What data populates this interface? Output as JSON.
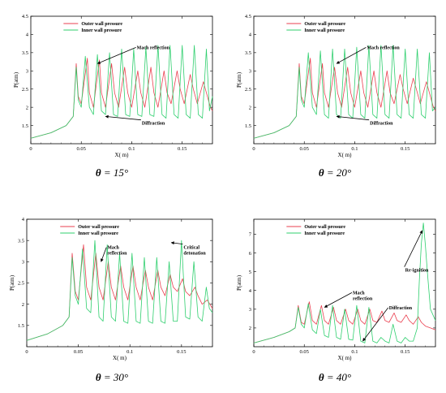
{
  "colors": {
    "outer": "#ea3f4f",
    "inner": "#2fcf6e",
    "axis": "#000000",
    "frame_bg": "#ffffff"
  },
  "chart_data": [
    {
      "type": "line",
      "caption_symbol": "θ",
      "caption_value": " = 15°",
      "xlabel": "X( m)",
      "ylabel": "P(atm)",
      "xlim": [
        0,
        0.18
      ],
      "ylim": [
        1,
        4.5
      ],
      "xticks": [
        0,
        0.05,
        0.1,
        0.15
      ],
      "xtick_labels": [
        "0",
        "0.05",
        "0.1",
        "0.15"
      ],
      "yticks": [
        1.5,
        2,
        2.5,
        3,
        3.5,
        4,
        4.5
      ],
      "ytick_labels": [
        "1.5",
        "2",
        "2.5",
        "3",
        "3.5",
        "4",
        "4.5"
      ],
      "legend_position": "top-center",
      "series": [
        {
          "name": "Outer wall pressure",
          "color_key": "outer",
          "x": [
            0,
            0.02,
            0.035,
            0.042,
            0.045,
            0.047,
            0.05,
            0.056,
            0.058,
            0.062,
            0.068,
            0.07,
            0.074,
            0.08,
            0.083,
            0.087,
            0.093,
            0.096,
            0.1,
            0.106,
            0.109,
            0.113,
            0.119,
            0.122,
            0.126,
            0.132,
            0.135,
            0.139,
            0.145,
            0.148,
            0.152,
            0.158,
            0.161,
            0.165,
            0.171,
            0.174,
            0.178,
            0.18
          ],
          "y": [
            1.15,
            1.3,
            1.5,
            1.75,
            3.2,
            2.3,
            2.1,
            3.35,
            2.4,
            2.0,
            3.3,
            2.4,
            2.0,
            3.2,
            2.4,
            2.0,
            3.1,
            2.4,
            2.0,
            3.0,
            2.4,
            2.0,
            3.1,
            2.4,
            2.0,
            3.0,
            2.4,
            2.1,
            3.0,
            2.5,
            2.1,
            2.9,
            2.5,
            2.1,
            2.7,
            2.4,
            2.0,
            1.9
          ]
        },
        {
          "name": "Inner wall pressure",
          "color_key": "inner",
          "x": [
            0,
            0.02,
            0.035,
            0.042,
            0.045,
            0.047,
            0.05,
            0.054,
            0.058,
            0.062,
            0.066,
            0.07,
            0.074,
            0.078,
            0.082,
            0.086,
            0.09,
            0.094,
            0.098,
            0.102,
            0.106,
            0.11,
            0.114,
            0.118,
            0.122,
            0.126,
            0.13,
            0.134,
            0.138,
            0.142,
            0.146,
            0.15,
            0.154,
            0.158,
            0.162,
            0.166,
            0.17,
            0.174,
            0.177,
            0.18
          ],
          "y": [
            1.15,
            1.3,
            1.5,
            1.75,
            3.1,
            2.2,
            2.0,
            3.4,
            2.0,
            1.8,
            3.45,
            1.9,
            1.8,
            3.5,
            1.8,
            1.75,
            3.6,
            1.8,
            1.75,
            3.6,
            1.8,
            1.75,
            3.65,
            1.8,
            1.75,
            3.7,
            1.8,
            1.7,
            3.7,
            1.8,
            1.7,
            3.7,
            1.8,
            1.7,
            3.7,
            1.8,
            1.7,
            3.6,
            1.9,
            2.3
          ]
        }
      ],
      "annotations": [
        {
          "text": "Mach reflection",
          "x": 0.105,
          "y": 3.6,
          "arrow_to": [
            0.066,
            3.2
          ]
        },
        {
          "text": "Diffraction",
          "x": 0.11,
          "y": 1.52,
          "arrow_to": [
            0.074,
            1.75
          ]
        }
      ]
    },
    {
      "type": "line",
      "caption_symbol": "θ",
      "caption_value": " = 20°",
      "xlabel": "X( m)",
      "ylabel": "P(atm)",
      "xlim": [
        0,
        0.18
      ],
      "ylim": [
        1,
        4.5
      ],
      "xticks": [
        0,
        0.05,
        0.1,
        0.15
      ],
      "xtick_labels": [
        "0",
        "0.05",
        "0.1",
        "0.15"
      ],
      "yticks": [
        1.5,
        2,
        2.5,
        3,
        3.5,
        4,
        4.5
      ],
      "ytick_labels": [
        "1.5",
        "2",
        "2.5",
        "3",
        "3.5",
        "4",
        "4.5"
      ],
      "legend_position": "top-center",
      "series": [
        {
          "name": "Outer wall pressure",
          "color_key": "outer",
          "x": [
            0,
            0.02,
            0.035,
            0.042,
            0.045,
            0.047,
            0.05,
            0.056,
            0.058,
            0.062,
            0.068,
            0.07,
            0.074,
            0.08,
            0.083,
            0.087,
            0.093,
            0.096,
            0.1,
            0.106,
            0.109,
            0.113,
            0.119,
            0.122,
            0.126,
            0.132,
            0.135,
            0.139,
            0.145,
            0.148,
            0.152,
            0.158,
            0.161,
            0.165,
            0.171,
            0.174,
            0.178,
            0.18
          ],
          "y": [
            1.15,
            1.3,
            1.5,
            1.75,
            3.2,
            2.3,
            2.1,
            3.35,
            2.4,
            2.0,
            3.2,
            2.4,
            2.0,
            3.1,
            2.4,
            2.0,
            3.1,
            2.4,
            2.0,
            3.0,
            2.4,
            2.0,
            3.0,
            2.4,
            2.0,
            3.0,
            2.4,
            2.1,
            2.9,
            2.5,
            2.1,
            2.8,
            2.5,
            2.1,
            2.7,
            2.4,
            2.0,
            1.9
          ]
        },
        {
          "name": "Inner wall pressure",
          "color_key": "inner",
          "x": [
            0,
            0.02,
            0.035,
            0.042,
            0.045,
            0.047,
            0.05,
            0.054,
            0.058,
            0.062,
            0.066,
            0.07,
            0.074,
            0.078,
            0.082,
            0.086,
            0.09,
            0.094,
            0.098,
            0.102,
            0.106,
            0.11,
            0.114,
            0.118,
            0.122,
            0.126,
            0.13,
            0.134,
            0.138,
            0.142,
            0.146,
            0.15,
            0.154,
            0.158,
            0.162,
            0.166,
            0.17,
            0.174,
            0.177,
            0.18
          ],
          "y": [
            1.15,
            1.3,
            1.5,
            1.75,
            3.1,
            2.2,
            2.0,
            3.5,
            2.0,
            1.8,
            3.55,
            1.8,
            1.7,
            3.6,
            1.8,
            1.7,
            3.6,
            1.8,
            1.7,
            3.65,
            1.8,
            1.7,
            3.7,
            1.8,
            1.7,
            3.7,
            1.8,
            1.7,
            3.7,
            1.8,
            1.7,
            3.6,
            1.8,
            1.7,
            3.6,
            1.8,
            1.7,
            3.5,
            1.9,
            2.0
          ]
        }
      ],
      "annotations": [
        {
          "text": "Mach reflection",
          "x": 0.112,
          "y": 3.6,
          "arrow_to": [
            0.082,
            3.2
          ]
        },
        {
          "text": "Diffraction",
          "x": 0.115,
          "y": 1.52,
          "arrow_to": [
            0.082,
            1.75
          ]
        }
      ]
    },
    {
      "type": "line",
      "caption_symbol": "θ",
      "caption_value": " = 30°",
      "xlabel": "X( m)",
      "ylabel": "P(atm)",
      "xlim": [
        0,
        0.18
      ],
      "ylim": [
        1,
        4
      ],
      "xticks": [
        0,
        0.05,
        0.1,
        0.15
      ],
      "xtick_labels": [
        "0",
        "0.05",
        "0.1",
        "0.15"
      ],
      "yticks": [
        1.5,
        2,
        2.5,
        3,
        3.5,
        4
      ],
      "ytick_labels": [
        "1.5",
        "2",
        "2.5",
        "3",
        "3.5",
        "4"
      ],
      "legend_position": "top-center",
      "series": [
        {
          "name": "Outer wall pressure",
          "color_key": "outer",
          "x": [
            0,
            0.02,
            0.035,
            0.041,
            0.044,
            0.047,
            0.05,
            0.055,
            0.058,
            0.062,
            0.067,
            0.07,
            0.074,
            0.079,
            0.082,
            0.086,
            0.091,
            0.094,
            0.098,
            0.103,
            0.106,
            0.11,
            0.115,
            0.118,
            0.122,
            0.127,
            0.13,
            0.134,
            0.139,
            0.142,
            0.146,
            0.151,
            0.154,
            0.158,
            0.163,
            0.166,
            0.17,
            0.175,
            0.18
          ],
          "y": [
            1.15,
            1.3,
            1.5,
            1.7,
            3.2,
            2.3,
            2.1,
            3.4,
            2.4,
            2.1,
            3.2,
            2.4,
            2.1,
            3.0,
            2.4,
            2.1,
            2.9,
            2.4,
            2.1,
            2.9,
            2.4,
            2.1,
            2.8,
            2.4,
            2.1,
            2.8,
            2.4,
            2.2,
            2.7,
            2.4,
            2.3,
            2.6,
            2.3,
            2.2,
            2.4,
            2.2,
            2.0,
            2.1,
            1.9
          ]
        },
        {
          "name": "Inner wall pressure",
          "color_key": "inner",
          "x": [
            0,
            0.02,
            0.035,
            0.041,
            0.044,
            0.047,
            0.05,
            0.054,
            0.058,
            0.062,
            0.066,
            0.07,
            0.074,
            0.078,
            0.082,
            0.086,
            0.09,
            0.094,
            0.098,
            0.102,
            0.106,
            0.11,
            0.114,
            0.118,
            0.122,
            0.126,
            0.13,
            0.134,
            0.138,
            0.142,
            0.146,
            0.15,
            0.154,
            0.158,
            0.162,
            0.166,
            0.17,
            0.174,
            0.177,
            0.18
          ],
          "y": [
            1.15,
            1.3,
            1.5,
            1.7,
            3.1,
            2.2,
            2.0,
            3.3,
            1.9,
            1.8,
            3.5,
            1.7,
            1.6,
            3.4,
            1.7,
            1.6,
            3.2,
            1.6,
            1.55,
            3.2,
            1.6,
            1.55,
            3.1,
            1.6,
            1.55,
            3.1,
            1.6,
            1.55,
            3.0,
            1.6,
            1.6,
            3.5,
            1.7,
            1.65,
            3.0,
            1.7,
            1.6,
            2.4,
            1.9,
            1.8
          ]
        }
      ],
      "annotations": [
        {
          "text": "Mach\nreflection",
          "x": 0.078,
          "y": 3.3,
          "arrow_to": [
            0.072,
            3.0
          ]
        },
        {
          "text": "Critical\ndetonation",
          "x": 0.152,
          "y": 3.3,
          "arrow_to": [
            0.14,
            3.45
          ]
        }
      ]
    },
    {
      "type": "line",
      "caption_symbol": "θ",
      "caption_value": " = 40°",
      "xlabel": "X( m)",
      "ylabel": "P(atm)",
      "xlim": [
        0,
        0.18
      ],
      "ylim": [
        1,
        7.8
      ],
      "xticks": [
        0,
        0.05,
        0.1,
        0.15
      ],
      "xtick_labels": [
        "0",
        "0.05",
        "0.1",
        "0.15"
      ],
      "yticks": [
        2,
        3,
        4,
        5,
        6,
        7
      ],
      "ytick_labels": [
        "2",
        "3",
        "4",
        "5",
        "6",
        "7"
      ],
      "legend_position": "top-center",
      "series": [
        {
          "name": "Outer wall pressure",
          "color_key": "outer",
          "x": [
            0,
            0.02,
            0.035,
            0.041,
            0.044,
            0.047,
            0.05,
            0.055,
            0.058,
            0.062,
            0.067,
            0.07,
            0.074,
            0.079,
            0.082,
            0.086,
            0.091,
            0.094,
            0.098,
            0.103,
            0.106,
            0.11,
            0.115,
            0.118,
            0.122,
            0.127,
            0.13,
            0.134,
            0.139,
            0.142,
            0.146,
            0.151,
            0.154,
            0.158,
            0.163,
            0.166,
            0.17,
            0.175,
            0.18
          ],
          "y": [
            1.2,
            1.5,
            1.8,
            2.0,
            3.2,
            2.3,
            2.2,
            3.4,
            2.4,
            2.2,
            3.2,
            2.4,
            2.2,
            3.1,
            2.4,
            2.2,
            3.0,
            2.4,
            2.2,
            3.0,
            2.4,
            2.2,
            3.0,
            2.4,
            2.3,
            2.9,
            2.4,
            2.3,
            2.8,
            2.4,
            2.3,
            2.7,
            2.4,
            2.2,
            2.6,
            2.3,
            2.1,
            2.0,
            1.9
          ]
        },
        {
          "name": "Inner wall pressure",
          "color_key": "inner",
          "x": [
            0,
            0.02,
            0.035,
            0.041,
            0.044,
            0.047,
            0.05,
            0.054,
            0.058,
            0.062,
            0.066,
            0.07,
            0.074,
            0.078,
            0.082,
            0.086,
            0.09,
            0.094,
            0.098,
            0.102,
            0.106,
            0.11,
            0.114,
            0.118,
            0.122,
            0.126,
            0.13,
            0.134,
            0.138,
            0.142,
            0.146,
            0.15,
            0.154,
            0.158,
            0.162,
            0.164,
            0.166,
            0.168,
            0.17,
            0.172,
            0.175,
            0.18
          ],
          "y": [
            1.2,
            1.5,
            1.8,
            2.0,
            3.1,
            2.2,
            2.0,
            3.3,
            1.9,
            1.7,
            3.0,
            1.6,
            1.5,
            3.2,
            1.5,
            1.4,
            3.0,
            1.4,
            1.35,
            3.2,
            1.3,
            1.2,
            3.1,
            1.3,
            1.2,
            1.5,
            1.3,
            1.2,
            2.2,
            1.3,
            1.2,
            1.5,
            1.3,
            1.3,
            2.0,
            4.5,
            6.5,
            7.6,
            6.4,
            5.0,
            3.0,
            2.4
          ]
        }
      ],
      "annotations": [
        {
          "text": "Mach\nreflection",
          "x": 0.098,
          "y": 3.8,
          "arrow_to": [
            0.07,
            3.1
          ]
        },
        {
          "text": "Diffraction",
          "x": 0.134,
          "y": 3.0,
          "arrow_to": [
            0.108,
            1.3
          ]
        },
        {
          "text": "Re-ignition",
          "x": 0.15,
          "y": 5.0,
          "arrow_to": [
            0.167,
            7.2
          ]
        }
      ]
    }
  ]
}
